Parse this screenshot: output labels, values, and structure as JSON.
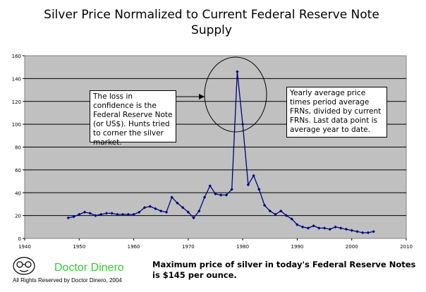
{
  "title": "Silver Price Normalized to Current Federal Reserve Note Supply",
  "annotations": {
    "left": "The loss in confidence is the Federal Reserve Note (or US$).  Hunts tried to corner the silver market.",
    "right": "Yearly average price times period average FRNs, divided by current FRNs.  Last data point is average year to date."
  },
  "footer": {
    "brand": "Doctor Dinero",
    "rights": "All Rights Reserved by Doctor Dinero, 2004",
    "note": "Maximum price of silver in today's Federal Reserve Notes is $145 per ounce."
  },
  "colors": {
    "plot_bg": "#c0c0c0",
    "series": "#000080",
    "brand": "#33cc33"
  },
  "chart_data": {
    "type": "line",
    "title": "Silver Price Normalized to Current Federal Reserve Note Supply",
    "xlabel": "",
    "ylabel": "",
    "xlim": [
      1940,
      2010
    ],
    "ylim": [
      0,
      160
    ],
    "x_ticks": [
      1940,
      1950,
      1960,
      1970,
      1980,
      1990,
      2000,
      2010
    ],
    "y_ticks": [
      0,
      20,
      40,
      60,
      80,
      100,
      120,
      140,
      160
    ],
    "grid": true,
    "legend": "none",
    "series": [
      {
        "x": [
          1948,
          1949,
          1950,
          1951,
          1952,
          1953,
          1954,
          1955,
          1956,
          1957,
          1958,
          1959,
          1960,
          1961,
          1962,
          1963,
          1964,
          1965,
          1966,
          1967,
          1968,
          1969,
          1970,
          1971,
          1972,
          1973,
          1974,
          1975,
          1976,
          1977,
          1978,
          1979,
          1980,
          1981,
          1982,
          1983,
          1984,
          1985,
          1986,
          1987,
          1988,
          1989,
          1990,
          1991,
          1992,
          1993,
          1994,
          1995,
          1996,
          1997,
          1998,
          1999,
          2000,
          2001,
          2002,
          2003,
          2004
        ],
        "values": [
          18,
          19,
          21,
          23,
          22,
          20,
          21,
          22,
          22,
          21,
          21,
          21,
          21,
          23,
          27,
          28,
          26,
          24,
          23,
          36,
          31,
          27,
          23,
          18,
          24,
          36,
          46,
          39,
          38,
          38,
          43,
          146,
          100,
          47,
          55,
          43,
          29,
          24,
          21,
          24,
          20,
          17,
          12,
          10,
          9,
          11,
          9,
          9,
          8,
          10,
          9,
          8,
          7,
          6,
          5,
          5,
          6
        ]
      }
    ]
  }
}
